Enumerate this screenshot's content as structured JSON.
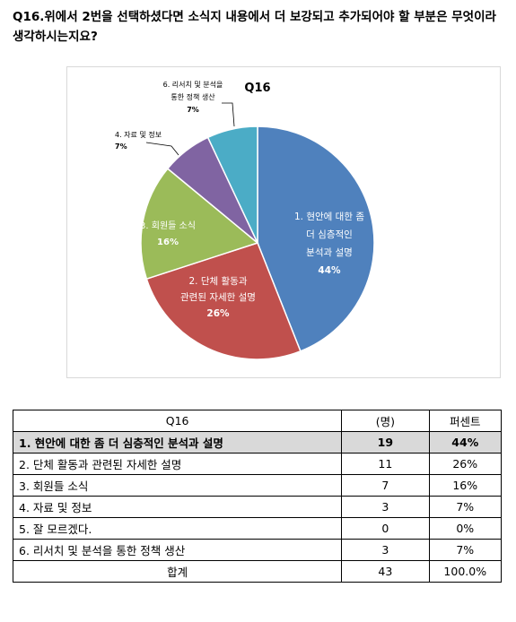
{
  "question": "Q16.위에서 2번을 선택하셨다면 소식지 내용에서 더 보강되고 추가되어야 할 부분은 무엇이라 생각하시는지요?",
  "chart_data": {
    "type": "pie",
    "title": "Q16",
    "slices": [
      {
        "lines": [
          "1. 현안에 대한 좀",
          "더 심층적인",
          "분석과 설명"
        ],
        "pct_label": "44%",
        "value": 44,
        "color": "#4f81bd"
      },
      {
        "lines": [
          "2. 단체 활동과",
          "관련된 자세한 설명"
        ],
        "pct_label": "26%",
        "value": 26,
        "color": "#c0504d"
      },
      {
        "lines": [
          "3. 회원들 소식"
        ],
        "pct_label": "16%",
        "value": 16,
        "color": "#9bbb59"
      },
      {
        "lines": [
          "4. 자료 및 정보"
        ],
        "pct_label": "7%",
        "value": 7,
        "color": "#8064a2"
      },
      {
        "lines": [
          "6. 리서치 및 분석을",
          "통한 정책 생산"
        ],
        "pct_label": "7%",
        "value": 7,
        "color": "#4bacc6"
      }
    ]
  },
  "table": {
    "headers": [
      "Q16",
      "(명)",
      "퍼센트"
    ],
    "rows": [
      {
        "label": "1. 현안에 대한 좀 더 심층적인 분석과 설명",
        "count": "19",
        "pct": "44%"
      },
      {
        "label": "2. 단체 활동과 관련된 자세한 설명",
        "count": "11",
        "pct": "26%"
      },
      {
        "label": "3. 회원들 소식",
        "count": "7",
        "pct": "16%"
      },
      {
        "label": "4. 자료 및 정보",
        "count": "3",
        "pct": "7%"
      },
      {
        "label": "5. 잘 모르겠다.",
        "count": "0",
        "pct": "0%"
      },
      {
        "label": "6. 리서치 및 분석을 통한 정책 생산",
        "count": "3",
        "pct": "7%"
      }
    ],
    "total": {
      "label": "합계",
      "count": "43",
      "pct": "100.0%"
    }
  }
}
